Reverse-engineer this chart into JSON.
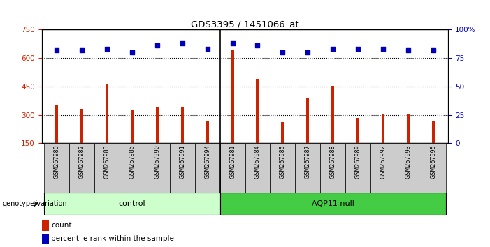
{
  "title": "GDS3395 / 1451066_at",
  "samples": [
    "GSM267980",
    "GSM267982",
    "GSM267983",
    "GSM267986",
    "GSM267990",
    "GSM267991",
    "GSM267994",
    "GSM267981",
    "GSM267984",
    "GSM267985",
    "GSM267987",
    "GSM267988",
    "GSM267989",
    "GSM267992",
    "GSM267993",
    "GSM267995"
  ],
  "counts": [
    350,
    330,
    460,
    325,
    340,
    340,
    265,
    640,
    490,
    260,
    390,
    455,
    285,
    305,
    305,
    270
  ],
  "percentile_ranks": [
    82,
    82,
    83,
    80,
    86,
    88,
    83,
    88,
    86,
    80,
    80,
    83,
    83,
    83,
    82,
    82
  ],
  "groups": [
    {
      "label": "control",
      "start": 0,
      "end": 7,
      "color": "#ccffcc"
    },
    {
      "label": "AQP11 null",
      "start": 7,
      "end": 16,
      "color": "#44cc44"
    }
  ],
  "bar_color": "#cc2200",
  "dot_color": "#0000bb",
  "ylim": [
    150,
    750
  ],
  "yticks": [
    150,
    300,
    450,
    600,
    750
  ],
  "y2lim": [
    0,
    100
  ],
  "y2ticks": [
    0,
    25,
    50,
    75,
    100
  ],
  "ylabel_color": "#cc2200",
  "y2label_color": "#0000bb",
  "grid_color": "#000000",
  "legend_count_color": "#cc2200",
  "legend_pct_color": "#0000bb",
  "sample_box_color": "#cccccc",
  "genotype_label": "genotype/variation",
  "legend_count": "count",
  "legend_pct": "percentile rank within the sample",
  "fig_width": 7.01,
  "fig_height": 3.54,
  "dpi": 100
}
